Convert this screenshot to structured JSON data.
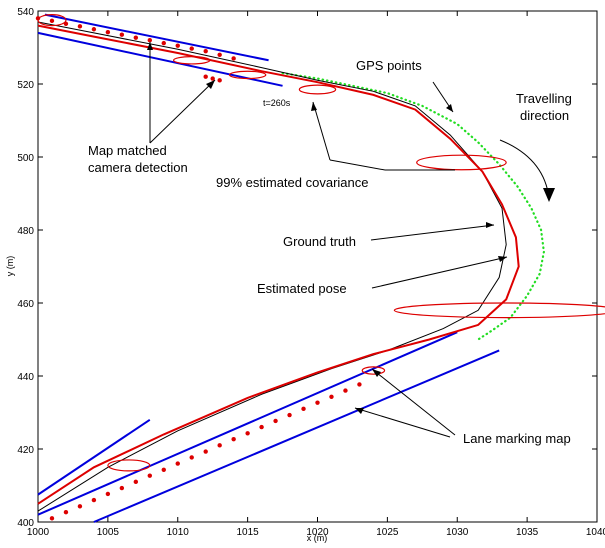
{
  "chart_data": {
    "type": "line",
    "xlabel": "x (m)",
    "ylabel": "y (m)",
    "xlim": [
      1000,
      1040
    ],
    "ylim": [
      400,
      540
    ],
    "xticks": [
      1000,
      1005,
      1010,
      1015,
      1020,
      1025,
      1030,
      1035,
      1040
    ],
    "yticks": [
      400,
      420,
      440,
      460,
      480,
      500,
      520,
      540
    ],
    "grid": false,
    "lane_marking_map": {
      "color": "#0000dd",
      "segments": [
        [
          [
            1000.5,
            539
          ],
          [
            1016.5,
            526.5
          ]
        ],
        [
          [
            1000,
            534
          ],
          [
            1017.5,
            519.5
          ]
        ],
        [
          [
            1000,
            407.5
          ],
          [
            1008,
            428
          ]
        ],
        [
          [
            1000,
            402
          ],
          [
            1030,
            452
          ]
        ],
        [
          [
            1004,
            400
          ],
          [
            1033,
            447
          ]
        ]
      ]
    },
    "ground_truth": {
      "color": "#000000",
      "points": [
        [
          1000,
          537
        ],
        [
          1004,
          534
        ],
        [
          1010,
          529.5
        ],
        [
          1016,
          524.5
        ],
        [
          1020,
          521
        ],
        [
          1024,
          518
        ],
        [
          1027,
          514
        ],
        [
          1029.5,
          506
        ],
        [
          1031.8,
          496
        ],
        [
          1033.2,
          486
        ],
        [
          1033.5,
          476
        ],
        [
          1033,
          467
        ],
        [
          1031.5,
          458
        ],
        [
          1029,
          453
        ],
        [
          1025,
          447
        ],
        [
          1021,
          442
        ],
        [
          1016,
          435
        ],
        [
          1010,
          425
        ],
        [
          1005,
          415
        ],
        [
          1000,
          403
        ]
      ]
    },
    "estimated_pose": {
      "color": "#dd0000",
      "points": [
        [
          1000,
          536
        ],
        [
          1004,
          533
        ],
        [
          1010,
          528.5
        ],
        [
          1016,
          523.5
        ],
        [
          1020,
          520.5
        ],
        [
          1024,
          517
        ],
        [
          1027,
          513
        ],
        [
          1029.5,
          505
        ],
        [
          1031.8,
          496
        ],
        [
          1033.2,
          487
        ],
        [
          1034.2,
          478
        ],
        [
          1034.4,
          470
        ],
        [
          1033.5,
          461
        ],
        [
          1031.5,
          454
        ],
        [
          1028,
          450
        ],
        [
          1024,
          446
        ],
        [
          1020,
          441
        ],
        [
          1015,
          434
        ],
        [
          1009,
          424
        ],
        [
          1004,
          415
        ],
        [
          1000,
          405
        ]
      ]
    },
    "gps_points": {
      "color": "#22dd22",
      "points": [
        [
          1017.5,
          523
        ],
        [
          1020,
          521.5
        ],
        [
          1022.5,
          519.5
        ],
        [
          1025,
          517.5
        ],
        [
          1027.5,
          514
        ],
        [
          1030,
          509
        ],
        [
          1031.5,
          504
        ],
        [
          1033,
          498
        ],
        [
          1034.3,
          492
        ],
        [
          1035.3,
          486
        ],
        [
          1036,
          480
        ],
        [
          1036.2,
          474
        ],
        [
          1035.9,
          468
        ],
        [
          1035,
          462
        ],
        [
          1033.8,
          456
        ],
        [
          1032.5,
          452.5
        ],
        [
          1031.5,
          450
        ]
      ]
    },
    "camera_detections": {
      "color": "#dd0000",
      "points": [
        [
          1000,
          538
        ],
        [
          1001,
          537.3
        ],
        [
          1002,
          536.5
        ],
        [
          1003,
          535.8
        ],
        [
          1004,
          535
        ],
        [
          1005,
          534.2
        ],
        [
          1006,
          533.5
        ],
        [
          1007,
          532.7
        ],
        [
          1008,
          532
        ],
        [
          1009,
          531.2
        ],
        [
          1010,
          530.5
        ],
        [
          1011,
          529.7
        ],
        [
          1012,
          529
        ],
        [
          1013,
          528
        ],
        [
          1014,
          527
        ],
        [
          1012,
          522
        ],
        [
          1012.5,
          521.5
        ],
        [
          1013,
          521
        ],
        [
          1001,
          401
        ],
        [
          1002,
          402.7
        ],
        [
          1003,
          404.3
        ],
        [
          1004,
          406
        ],
        [
          1005,
          407.7
        ],
        [
          1006,
          409.3
        ],
        [
          1007,
          411
        ],
        [
          1008,
          412.7
        ],
        [
          1009,
          414.3
        ],
        [
          1010,
          416
        ],
        [
          1011,
          417.7
        ],
        [
          1012,
          419.3
        ],
        [
          1013,
          421
        ],
        [
          1014,
          422.7
        ],
        [
          1015,
          424.3
        ],
        [
          1016,
          426
        ],
        [
          1017,
          427.7
        ],
        [
          1018,
          429.3
        ],
        [
          1019,
          431
        ],
        [
          1020,
          432.7
        ],
        [
          1021,
          434.3
        ],
        [
          1022,
          436
        ],
        [
          1023,
          437.7
        ]
      ]
    },
    "covariance_ellipses": {
      "color": "#dd0000",
      "items": [
        {
          "cx": 1001,
          "cy": 537.5,
          "rx": 1.0,
          "ry": 1.5
        },
        {
          "cx": 1011,
          "cy": 526.5,
          "rx": 1.3,
          "ry": 1.0
        },
        {
          "cx": 1015,
          "cy": 522.5,
          "rx": 1.3,
          "ry": 1.0
        },
        {
          "cx": 1020,
          "cy": 518.5,
          "rx": 1.3,
          "ry": 1.2
        },
        {
          "cx": 1030.3,
          "cy": 498.5,
          "rx": 3.2,
          "ry": 2.0
        },
        {
          "cx": 1033.5,
          "cy": 458,
          "rx": 8.0,
          "ry": 2.0
        },
        {
          "cx": 1006.5,
          "cy": 415.5,
          "rx": 1.5,
          "ry": 1.5
        },
        {
          "cx": 1024,
          "cy": 441.5,
          "rx": 0.8,
          "ry": 1.0
        }
      ]
    },
    "annotations": {
      "gps_points": "GPS points",
      "travelling_line1": "Travelling",
      "travelling_line2": "direction",
      "map_matched_line1": "Map matched",
      "map_matched_line2": "camera detection",
      "time_label": "t=260s",
      "covariance": "99% estimated covariance",
      "ground_truth": "Ground truth",
      "estimated_pose": "Estimated pose",
      "lane_marking_map": "Lane marking map"
    }
  }
}
